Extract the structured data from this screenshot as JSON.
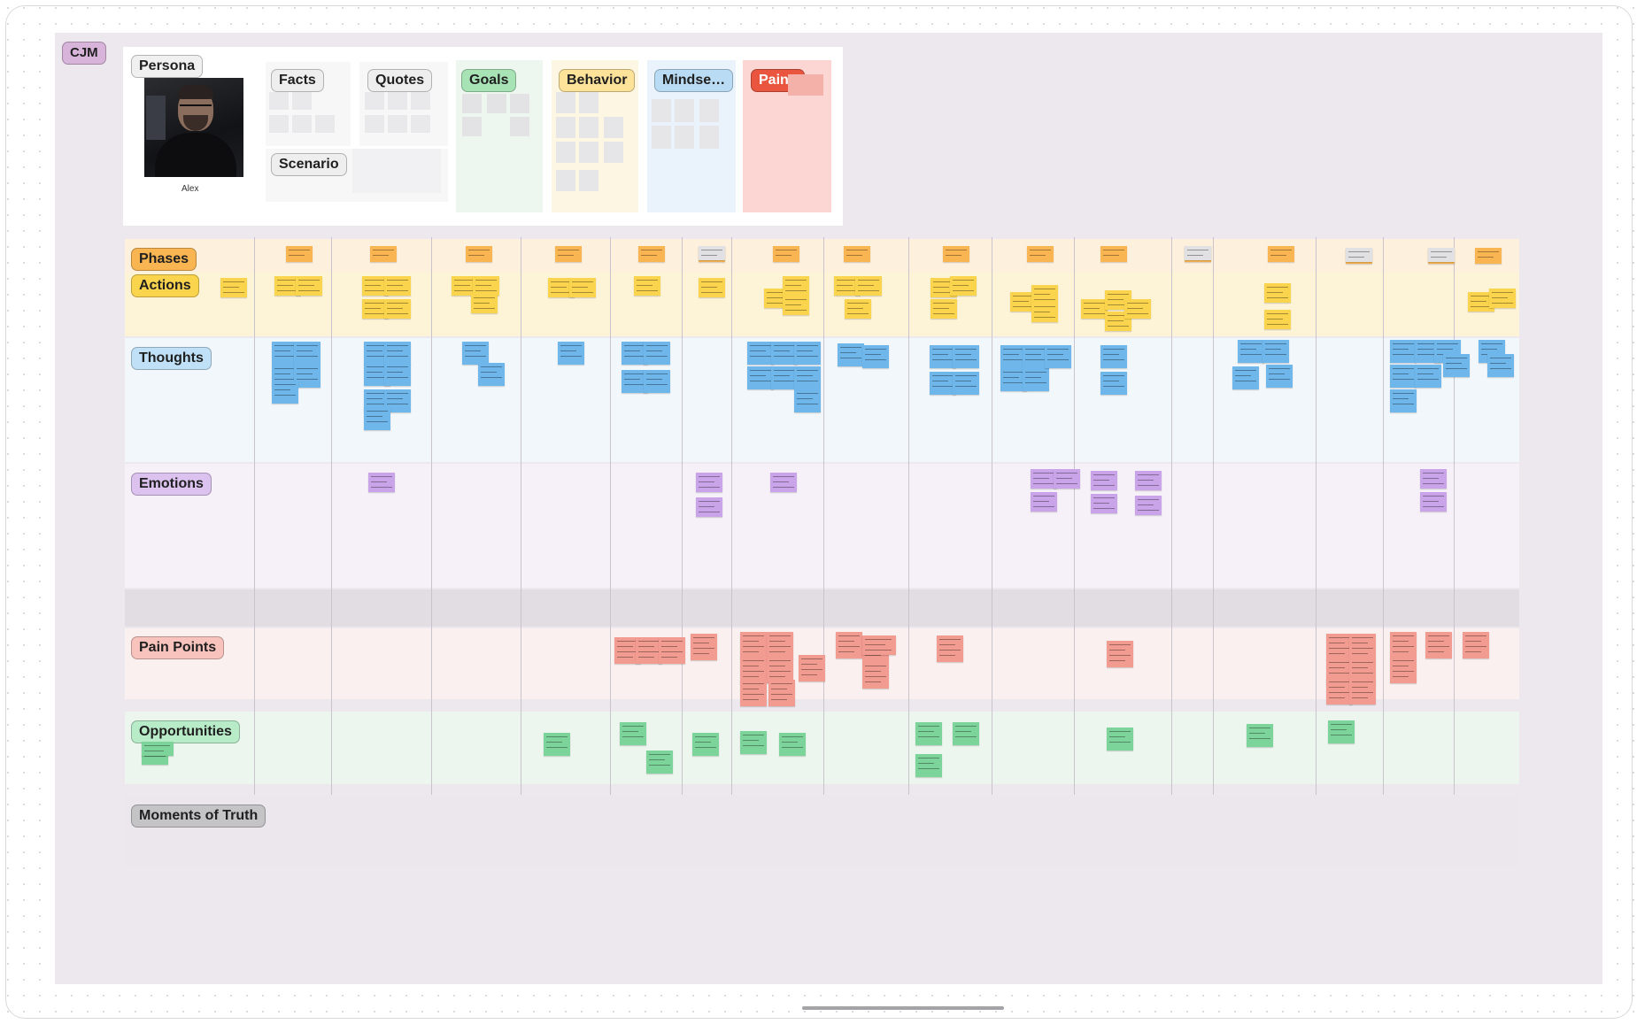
{
  "board": {
    "title_tag": "CJM"
  },
  "persona": {
    "title": "Persona",
    "name": "Alex",
    "cards": [
      "Facts",
      "Quotes",
      "Goals",
      "Behavior",
      "Mindse…",
      "Pains",
      "Scenario"
    ]
  },
  "lanes": {
    "phases": "Phases",
    "actions": "Actions",
    "thoughts": "Thoughts",
    "emotions": "Emotions",
    "pain_points": "Pain Points",
    "opportunities": "Opportunities",
    "moments": "Moments of Truth"
  },
  "colors": {
    "canvas": "#ede8ee",
    "phases_bg": "#fdf0dd",
    "actions_bg": "#fdf3d7",
    "thoughts_bg": "#f1f7fb",
    "emotions_bg": "#f6f0f8",
    "pain_bg": "#fbf0f0",
    "opp_bg": "#ecf6ef",
    "sticky_orange": "#f9b552",
    "sticky_yellow": "#fbd44e",
    "sticky_blue": "#6fb6ea",
    "sticky_purple": "#c9a4e9",
    "sticky_red": "#f29b91",
    "sticky_green": "#7dd49a",
    "sticky_grey": "#e1e1e4"
  }
}
